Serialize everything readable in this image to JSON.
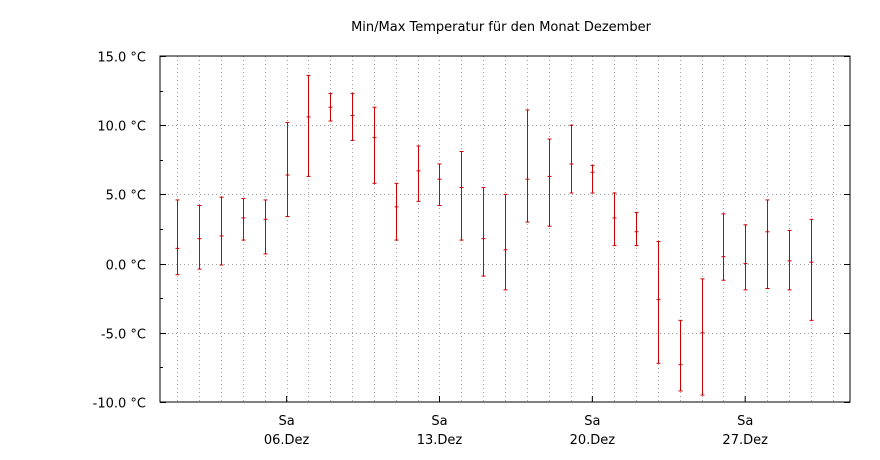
{
  "chart_data": {
    "type": "errorbar",
    "title": "Min/Max Temperatur für den Monat Dezember",
    "xlabel": "",
    "ylabel": "",
    "ylim": [
      -10,
      15
    ],
    "y_ticks": [
      {
        "value": 15,
        "label": "15.0 °C"
      },
      {
        "value": 10,
        "label": "10.0 °C"
      },
      {
        "value": 5,
        "label": "5.0 °C"
      },
      {
        "value": 0,
        "label": "0.0 °C"
      },
      {
        "value": -5,
        "label": "-5.0 °C"
      },
      {
        "value": -10,
        "label": "-10.0 °C"
      }
    ],
    "xlim": [
      0.2,
      31.8
    ],
    "x_ticks": [
      {
        "day": 6,
        "weekday": "Sa",
        "date": "06.Dez"
      },
      {
        "day": 13,
        "weekday": "Sa",
        "date": "13.Dez"
      },
      {
        "day": 20,
        "weekday": "Sa",
        "date": "20.Dez"
      },
      {
        "day": 27,
        "weekday": "Sa",
        "date": "27.Dez"
      }
    ],
    "grid": true,
    "series_color": "#cc0000",
    "series": [
      {
        "day": 1,
        "min": -0.8,
        "mean": 1.1,
        "max": 4.6
      },
      {
        "day": 2,
        "min": -0.4,
        "mean": 1.8,
        "max": 4.2
      },
      {
        "day": 3,
        "min": -0.1,
        "mean": 2.0,
        "max": 4.8
      },
      {
        "day": 4,
        "min": 1.7,
        "mean": 3.3,
        "max": 4.7
      },
      {
        "day": 5,
        "min": 0.7,
        "mean": 3.2,
        "max": 4.6
      },
      {
        "day": 6,
        "min": 3.4,
        "mean": 6.4,
        "max": 10.2
      },
      {
        "day": 7,
        "min": 6.3,
        "mean": 10.6,
        "max": 13.6
      },
      {
        "day": 8,
        "min": 10.3,
        "mean": 11.3,
        "max": 12.3
      },
      {
        "day": 9,
        "min": 8.9,
        "mean": 10.7,
        "max": 12.3
      },
      {
        "day": 10,
        "min": 5.8,
        "mean": 9.1,
        "max": 11.3
      },
      {
        "day": 11,
        "min": 1.7,
        "mean": 4.1,
        "max": 5.8
      },
      {
        "day": 12,
        "min": 4.5,
        "mean": 6.7,
        "max": 8.5
      },
      {
        "day": 13,
        "min": 4.2,
        "mean": 6.1,
        "max": 7.2
      },
      {
        "day": 14,
        "min": 1.7,
        "mean": 5.5,
        "max": 8.1
      },
      {
        "day": 15,
        "min": -0.9,
        "mean": 1.8,
        "max": 5.5
      },
      {
        "day": 16,
        "min": -1.9,
        "mean": 1.0,
        "max": 5.0
      },
      {
        "day": 17,
        "min": 3.0,
        "mean": 6.1,
        "max": 11.1
      },
      {
        "day": 18,
        "min": 2.7,
        "mean": 6.3,
        "max": 9.0
      },
      {
        "day": 19,
        "min": 5.1,
        "mean": 7.2,
        "max": 10.0
      },
      {
        "day": 20,
        "min": 5.1,
        "mean": 6.6,
        "max": 7.1
      },
      {
        "day": 21,
        "min": 1.3,
        "mean": 3.3,
        "max": 5.1
      },
      {
        "day": 22,
        "min": 1.3,
        "mean": 2.3,
        "max": 3.7
      },
      {
        "day": 23,
        "min": -7.2,
        "mean": -2.6,
        "max": 1.6
      },
      {
        "day": 24,
        "min": -9.2,
        "mean": -7.3,
        "max": -4.1
      },
      {
        "day": 25,
        "min": -9.5,
        "mean": -5.0,
        "max": -1.1
      },
      {
        "day": 26,
        "min": -1.2,
        "mean": 0.5,
        "max": 3.6
      },
      {
        "day": 27,
        "min": -1.9,
        "mean": 0.0,
        "max": 2.8
      },
      {
        "day": 28,
        "min": -1.8,
        "mean": 2.3,
        "max": 4.6
      },
      {
        "day": 29,
        "min": -1.9,
        "mean": 0.2,
        "max": 2.4
      },
      {
        "day": 30,
        "min": -4.1,
        "mean": 0.1,
        "max": 3.2
      }
    ]
  }
}
